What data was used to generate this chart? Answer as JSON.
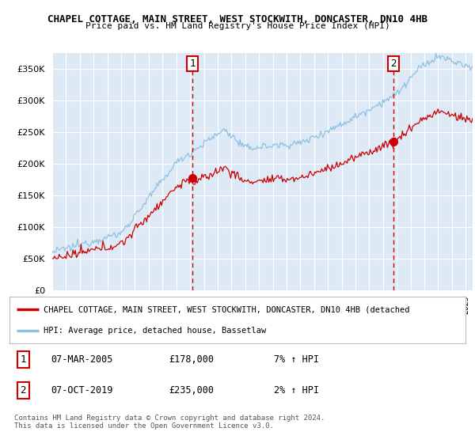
{
  "title1": "CHAPEL COTTAGE, MAIN STREET, WEST STOCKWITH, DONCASTER, DN10 4HB",
  "title2": "Price paid vs. HM Land Registry's House Price Index (HPI)",
  "ytick_values": [
    0,
    50000,
    100000,
    150000,
    200000,
    250000,
    300000,
    350000
  ],
  "ylim": [
    0,
    375000
  ],
  "xlim_start": 1995.0,
  "xlim_end": 2025.5,
  "background_color": "#ddeaf6",
  "grid_color": "#ffffff",
  "sale1_x": 2005.18,
  "sale1_y": 178000,
  "sale2_x": 2019.77,
  "sale2_y": 235000,
  "dashed_color": "#cc0000",
  "marker_color": "#cc0000",
  "hpi_color": "#90c0e0",
  "price_color": "#cc0000",
  "legend_line1": "CHAPEL COTTAGE, MAIN STREET, WEST STOCKWITH, DONCASTER, DN10 4HB (detached",
  "legend_line2": "HPI: Average price, detached house, Bassetlaw",
  "annotation1_date": "07-MAR-2005",
  "annotation1_price": "£178,000",
  "annotation1_hpi": "7% ↑ HPI",
  "annotation2_date": "07-OCT-2019",
  "annotation2_price": "£235,000",
  "annotation2_hpi": "2% ↑ HPI",
  "footer": "Contains HM Land Registry data © Crown copyright and database right 2024.\nThis data is licensed under the Open Government Licence v3.0."
}
